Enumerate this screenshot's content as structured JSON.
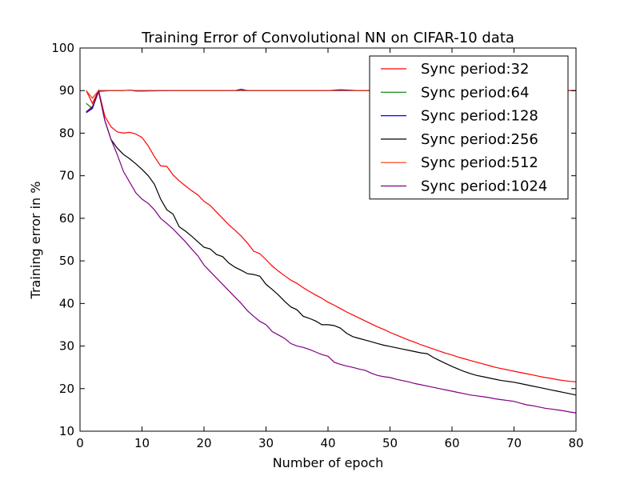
{
  "chart_data": {
    "type": "line",
    "title": "Training Error of Convolutional NN on CIFAR-10 data",
    "xlabel": "Number of epoch",
    "ylabel": "Training error in %",
    "xlim": [
      0,
      80
    ],
    "ylim": [
      10,
      100
    ],
    "xticks": [
      0,
      10,
      20,
      30,
      40,
      50,
      60,
      70,
      80
    ],
    "yticks": [
      10,
      20,
      30,
      40,
      50,
      60,
      70,
      80,
      90,
      100
    ],
    "grid": false,
    "legend_position": "top-right",
    "series": [
      {
        "name": "Sync period:32",
        "color": "#ff0000",
        "x": [
          1,
          2,
          3,
          4,
          5,
          6,
          7,
          8,
          9,
          10,
          11,
          12,
          13,
          14,
          15,
          16,
          17,
          18,
          19,
          20,
          21,
          22,
          23,
          24,
          25,
          26,
          27,
          28,
          29,
          30,
          31,
          32,
          33,
          34,
          35,
          36,
          37,
          38,
          39,
          40,
          41,
          42,
          43,
          44,
          45,
          46,
          47,
          48,
          49,
          50,
          51,
          52,
          53,
          54,
          55,
          56,
          57,
          58,
          59,
          60,
          61,
          62,
          63,
          64,
          65,
          66,
          67,
          68,
          69,
          70,
          71,
          72,
          73,
          74,
          75,
          76,
          77,
          78,
          79,
          80
        ],
        "y": [
          90,
          87,
          90,
          84,
          81.5,
          80.3,
          80,
          80.2,
          79.8,
          79,
          77,
          74.5,
          72.3,
          72.2,
          70.2,
          68.8,
          67.6,
          66.5,
          65.5,
          64,
          63,
          61.5,
          60,
          58.5,
          57.2,
          55.8,
          54.2,
          52.3,
          51.7,
          50.3,
          48.8,
          47.6,
          46.5,
          45.5,
          44.7,
          43.7,
          42.8,
          42,
          41.2,
          40.3,
          39.6,
          38.8,
          38,
          37.3,
          36.6,
          35.9,
          35.2,
          34.5,
          33.9,
          33.2,
          32.6,
          32,
          31.4,
          30.9,
          30.3,
          29.8,
          29.3,
          28.8,
          28.3,
          27.9,
          27.4,
          27,
          26.6,
          26.2,
          25.8,
          25.4,
          25,
          24.7,
          24.4,
          24.1,
          23.8,
          23.5,
          23.2,
          22.9,
          22.6,
          22.4,
          22.1,
          21.9,
          21.7,
          21.6
        ]
      },
      {
        "name": "Sync period:64",
        "color": "#008000",
        "x": [
          1,
          2,
          3,
          4,
          5,
          6,
          7,
          8,
          9,
          10,
          15,
          20,
          25,
          30,
          35,
          40,
          45,
          50,
          55,
          60,
          65,
          70,
          75,
          80
        ],
        "y": [
          87,
          85.8,
          89.8,
          89.9,
          90,
          90,
          90,
          90.1,
          90,
          90,
          90,
          90,
          90,
          90,
          90,
          90,
          90,
          90,
          90,
          90,
          90,
          90,
          90,
          90
        ]
      },
      {
        "name": "Sync period:128",
        "color": "#0000ff",
        "x": [
          1,
          2,
          3,
          4,
          5,
          6,
          7,
          8,
          9,
          10,
          15,
          20,
          25,
          26,
          27,
          30,
          35,
          40,
          42,
          45,
          50,
          55,
          60,
          65,
          70,
          75,
          80
        ],
        "y": [
          84.8,
          85.8,
          90,
          90,
          90,
          90,
          90,
          90.1,
          89.9,
          89.9,
          90,
          90,
          90,
          90.3,
          90,
          90,
          90,
          90,
          90.2,
          90,
          90,
          90,
          90,
          90,
          90,
          90,
          90
        ]
      },
      {
        "name": "Sync period:256",
        "color": "#000000",
        "x": [
          1,
          2,
          3,
          4,
          5,
          6,
          7,
          8,
          9,
          10,
          11,
          12,
          13,
          14,
          15,
          16,
          17,
          18,
          19,
          20,
          21,
          22,
          23,
          24,
          25,
          26,
          27,
          28,
          29,
          30,
          31,
          32,
          33,
          34,
          35,
          36,
          37,
          38,
          39,
          40,
          41,
          42,
          43,
          44,
          45,
          46,
          47,
          48,
          49,
          50,
          51,
          52,
          53,
          54,
          55,
          56,
          57,
          58,
          59,
          60,
          61,
          62,
          63,
          64,
          65,
          66,
          67,
          68,
          69,
          70,
          71,
          72,
          73,
          74,
          75,
          76,
          77,
          78,
          79,
          80
        ],
        "y": [
          85,
          86.2,
          89.8,
          83,
          78.5,
          76.5,
          75,
          74,
          72.8,
          71.5,
          70,
          68,
          64.5,
          62,
          61,
          58,
          57,
          55.8,
          54.5,
          53.2,
          52.8,
          51.5,
          51,
          49.5,
          48.5,
          47.8,
          47,
          46.8,
          46.4,
          44.5,
          43.3,
          42,
          40.5,
          39.2,
          38.5,
          37,
          36.5,
          35.9,
          35,
          35,
          34.8,
          34.2,
          33,
          32.2,
          31.8,
          31.4,
          31,
          30.6,
          30.2,
          29.9,
          29.6,
          29.3,
          29,
          28.7,
          28.4,
          28.2,
          27.3,
          26.6,
          25.9,
          25.2,
          24.6,
          24,
          23.5,
          23.1,
          22.8,
          22.5,
          22.2,
          21.9,
          21.7,
          21.5,
          21.2,
          20.9,
          20.6,
          20.3,
          20,
          19.7,
          19.4,
          19.1,
          18.8,
          18.5
        ]
      },
      {
        "name": "Sync period:512",
        "color": "#ff3300",
        "x": [
          1,
          2,
          3,
          4,
          5,
          6,
          7,
          8,
          9,
          10,
          15,
          20,
          25,
          30,
          35,
          40,
          45,
          50,
          55,
          60,
          65,
          70,
          75,
          80
        ],
        "y": [
          90,
          88.2,
          90,
          90,
          90,
          90,
          90,
          90.1,
          90,
          90,
          90,
          90,
          90,
          90,
          90,
          90,
          90,
          90,
          90,
          90,
          90,
          90,
          90,
          90
        ]
      },
      {
        "name": "Sync period:1024",
        "color": "#800080",
        "x": [
          1,
          2,
          3,
          4,
          5,
          6,
          7,
          8,
          9,
          10,
          11,
          12,
          13,
          14,
          15,
          16,
          17,
          18,
          19,
          20,
          21,
          22,
          23,
          24,
          25,
          26,
          27,
          28,
          29,
          30,
          31,
          32,
          33,
          34,
          35,
          36,
          37,
          38,
          39,
          40,
          41,
          42,
          43,
          44,
          45,
          46,
          47,
          48,
          49,
          50,
          51,
          52,
          53,
          54,
          55,
          56,
          57,
          58,
          59,
          60,
          61,
          62,
          63,
          64,
          65,
          66,
          67,
          68,
          69,
          70,
          71,
          72,
          73,
          74,
          75,
          76,
          77,
          78,
          79,
          80
        ],
        "y": [
          85,
          86,
          89.8,
          83,
          78.5,
          75,
          71,
          68.5,
          66,
          64.5,
          63.5,
          62,
          60,
          58.8,
          57.5,
          56,
          54.5,
          52.8,
          51.2,
          49,
          47.5,
          46,
          44.5,
          43,
          41.5,
          40,
          38.3,
          37,
          35.8,
          35,
          33.4,
          32.6,
          31.8,
          30.6,
          30,
          29.7,
          29.2,
          28.6,
          28,
          27.6,
          26.2,
          25.7,
          25.3,
          25,
          24.6,
          24.3,
          23.6,
          23.1,
          22.8,
          22.6,
          22.2,
          21.9,
          21.6,
          21.2,
          20.9,
          20.6,
          20.3,
          20,
          19.7,
          19.4,
          19.1,
          18.8,
          18.5,
          18.3,
          18.1,
          17.9,
          17.6,
          17.4,
          17.2,
          17,
          16.6,
          16.2,
          16,
          15.7,
          15.4,
          15.2,
          15,
          14.8,
          14.5,
          14.3
        ]
      }
    ]
  }
}
